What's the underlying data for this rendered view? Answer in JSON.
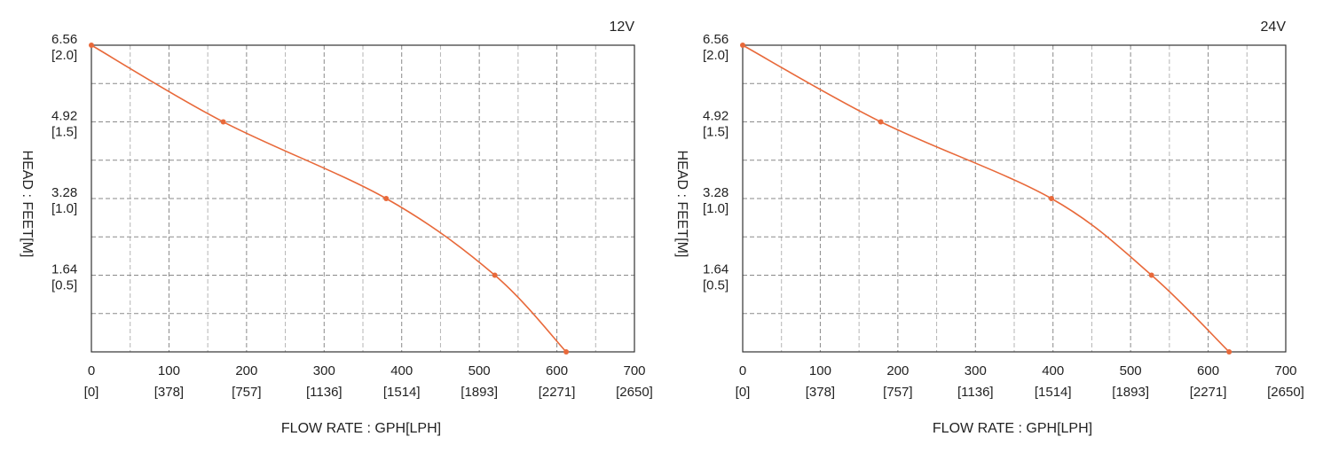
{
  "chart_data": [
    {
      "type": "line",
      "title": "12V",
      "xlabel": "FLOW RATE : GPH[LPH]",
      "ylabel": "HEAD : FEET[M]",
      "x_tick_values": [
        0,
        100,
        200,
        300,
        400,
        500,
        600,
        700
      ],
      "x_tick_secondary": [
        "[0]",
        "[378]",
        "[757]",
        "[1136]",
        "[1514]",
        "[1893]",
        "[2271]",
        "[2650]"
      ],
      "y_tick_values": [
        1.64,
        3.28,
        4.92,
        6.56
      ],
      "y_tick_primary": [
        "1.64",
        "3.28",
        "4.92",
        "6.56"
      ],
      "y_tick_secondary": [
        "[0.5]",
        "[1.0]",
        "[1.5]",
        "[2.0]"
      ],
      "xlim": [
        0,
        700
      ],
      "ylim": [
        0,
        6.56
      ],
      "grid": true,
      "color": "#e8693a",
      "series": [
        {
          "x": [
            0,
            170,
            380,
            520,
            612
          ],
          "y": [
            6.56,
            4.92,
            3.28,
            1.64,
            0
          ]
        }
      ]
    },
    {
      "type": "line",
      "title": "24V",
      "xlabel": "FLOW RATE : GPH[LPH]",
      "ylabel": "HEAD : FEET[M]",
      "x_tick_values": [
        0,
        100,
        200,
        300,
        400,
        500,
        600,
        700
      ],
      "x_tick_secondary": [
        "[0]",
        "[378]",
        "[757]",
        "[1136]",
        "[1514]",
        "[1893]",
        "[2271]",
        "[2650]"
      ],
      "y_tick_values": [
        1.64,
        3.28,
        4.92,
        6.56
      ],
      "y_tick_primary": [
        "1.64",
        "3.28",
        "4.92",
        "6.56"
      ],
      "y_tick_secondary": [
        "[0.5]",
        "[1.0]",
        "[1.5]",
        "[2.0]"
      ],
      "xlim": [
        0,
        700
      ],
      "ylim": [
        0,
        6.56
      ],
      "grid": true,
      "color": "#e8693a",
      "series": [
        {
          "x": [
            0,
            178,
            398,
            527,
            627
          ],
          "y": [
            6.56,
            4.92,
            3.28,
            1.64,
            0
          ]
        }
      ]
    }
  ]
}
